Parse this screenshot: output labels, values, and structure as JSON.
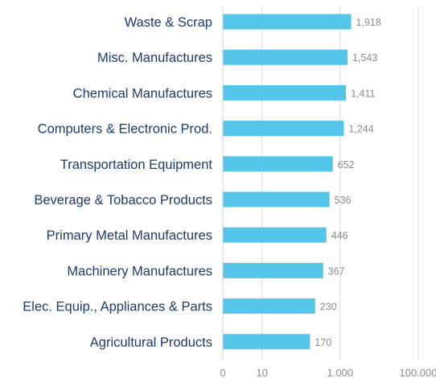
{
  "chart_data": {
    "type": "bar",
    "orientation": "horizontal",
    "x_scale": "log",
    "categories": [
      "Waste & Scrap",
      "Misc. Manufactures",
      "Chemical Manufactures",
      "Computers & Electronic Prod.",
      "Transportation Equipment",
      "Beverage & Tobacco Products",
      "Primary Metal Manufactures",
      "Machinery Manufactures",
      "Elec. Equip., Appliances & Parts",
      "Agricultural Products"
    ],
    "values": [
      1918,
      1543,
      1411,
      1244,
      652,
      536,
      446,
      367,
      230,
      170
    ],
    "value_labels": [
      "1,918",
      "1,543",
      "1,411",
      "1,244",
      "652",
      "536",
      "446",
      "367",
      "230",
      "170"
    ],
    "x_ticks": [
      1,
      10,
      1000,
      100000
    ],
    "x_tick_labels": [
      "0",
      "10",
      "1.000",
      "100.000"
    ],
    "xlim": [
      1,
      100000
    ],
    "grid": true,
    "legend": "none",
    "colors": {
      "bar": "#55c5ea",
      "category_text": "#1f3a70",
      "value_text": "#8c8c8c",
      "grid": "#dcdcdc"
    }
  }
}
